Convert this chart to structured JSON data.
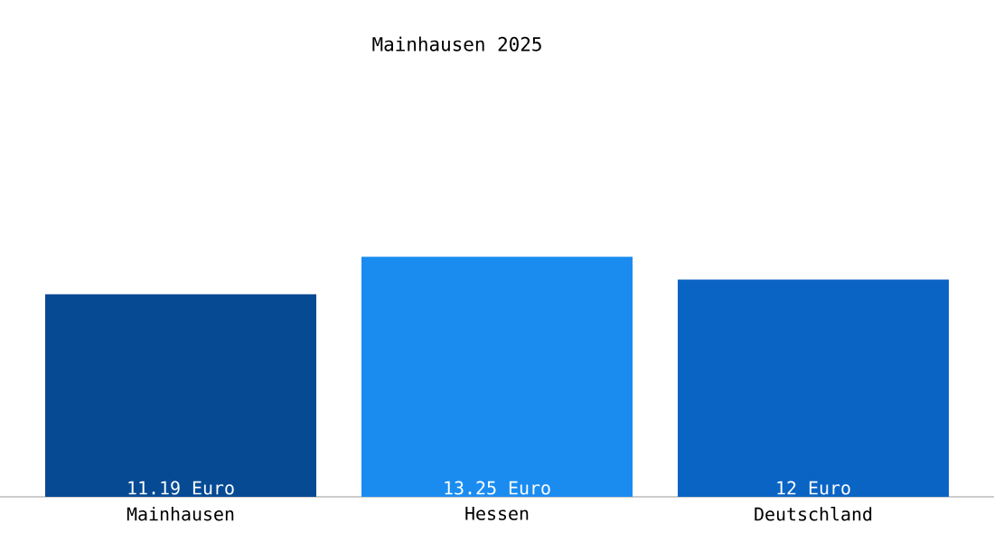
{
  "chart_data": {
    "type": "bar",
    "title": "Mainhausen 2025",
    "categories": [
      "Mainhausen",
      "Hessen",
      "Deutschland"
    ],
    "values": [
      11.19,
      13.25,
      12
    ],
    "colors": [
      "#064a94",
      "#1a8cf0",
      "#0a64c4"
    ],
    "value_labels": [
      "11.19 Euro",
      "13.25 Euro",
      "12 Euro"
    ]
  }
}
